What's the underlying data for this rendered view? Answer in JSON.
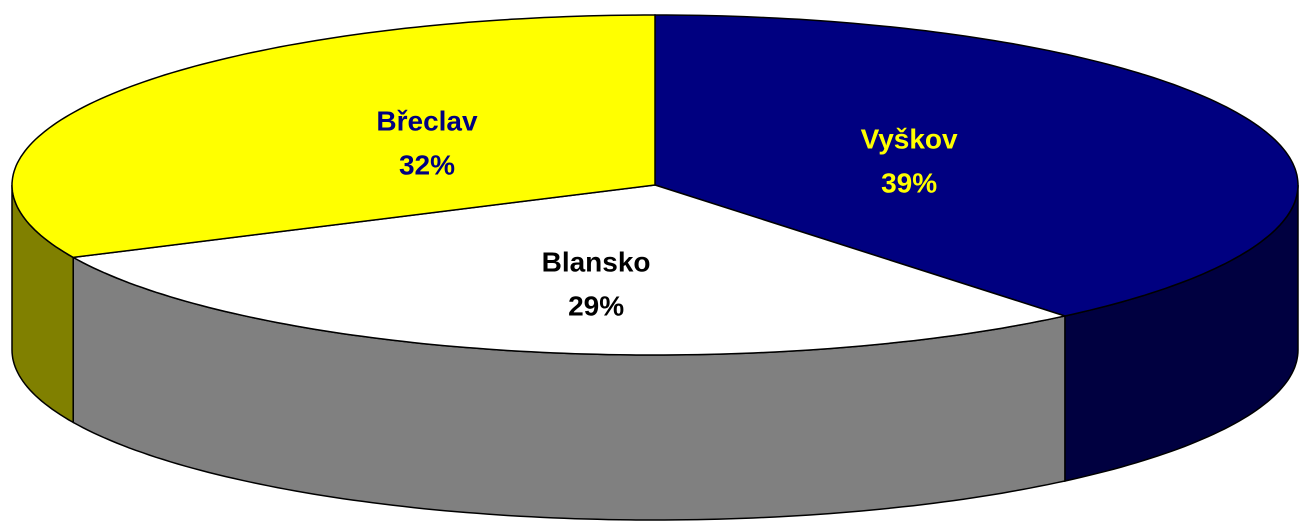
{
  "chart_data": {
    "type": "pie3d",
    "categories": [
      "Vyškov",
      "Blansko",
      "Břeclav"
    ],
    "values": [
      39,
      29,
      32
    ],
    "value_labels": [
      "39%",
      "29%",
      "32%"
    ],
    "colors": [
      "#000080",
      "#ffffff",
      "#ffff00"
    ],
    "label_colors": [
      "#ffff00",
      "#000000",
      "#000080"
    ]
  }
}
